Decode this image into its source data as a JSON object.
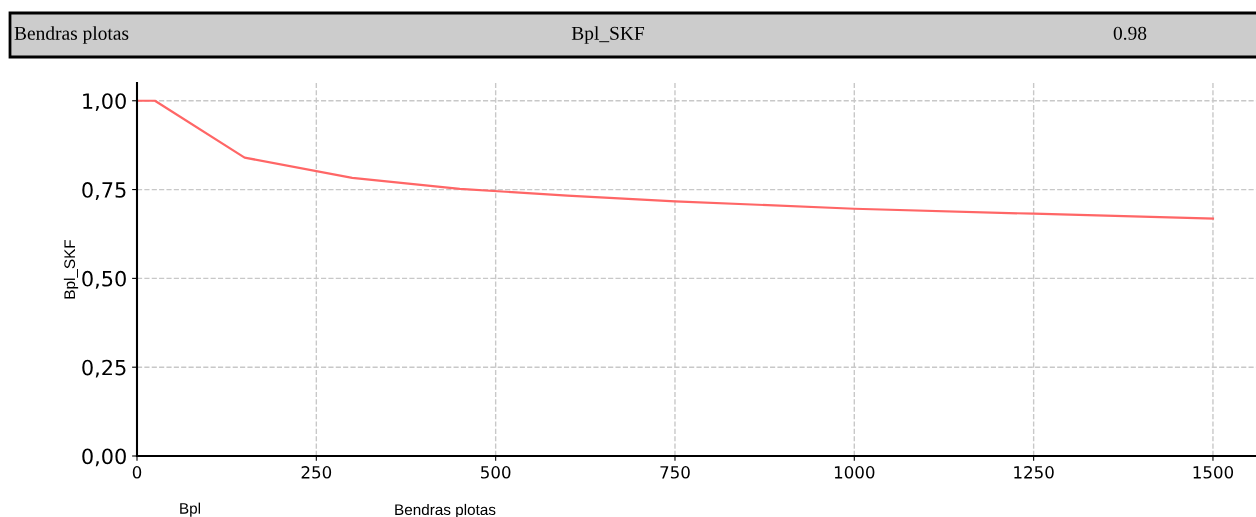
{
  "chart_data": {
    "type": "line",
    "annotations": [
      "Bendras plotas",
      "Bpl_SKF",
      "0.98",
      "Bendras plotas"
    ],
    "xlabel": "Bpl",
    "ylabel": "Bpl_SKF",
    "x": [
      0,
      25,
      150,
      300,
      450,
      600,
      750,
      1000,
      1250,
      1500
    ],
    "series": [
      {
        "color": "#ff6666",
        "values": [
          1.0,
          1.0,
          0.84,
          0.783,
          0.752,
          0.733,
          0.717,
          0.696,
          0.682,
          0.668
        ]
      }
    ],
    "xlim": [
      0,
      1560
    ],
    "ylim": [
      0,
      1.05
    ],
    "xticks": [
      0,
      250,
      500,
      750,
      1000,
      1250,
      1500
    ],
    "yticks": [
      {
        "value": 0,
        "label": "0,00"
      },
      {
        "value": 0.25,
        "label": "0,25"
      },
      {
        "value": 0.5,
        "label": "0,50"
      },
      {
        "value": 0.75,
        "label": "0,75"
      },
      {
        "value": 1.0,
        "label": "1,00"
      }
    ],
    "grid": true,
    "line_style": "solid",
    "marker": "none"
  }
}
